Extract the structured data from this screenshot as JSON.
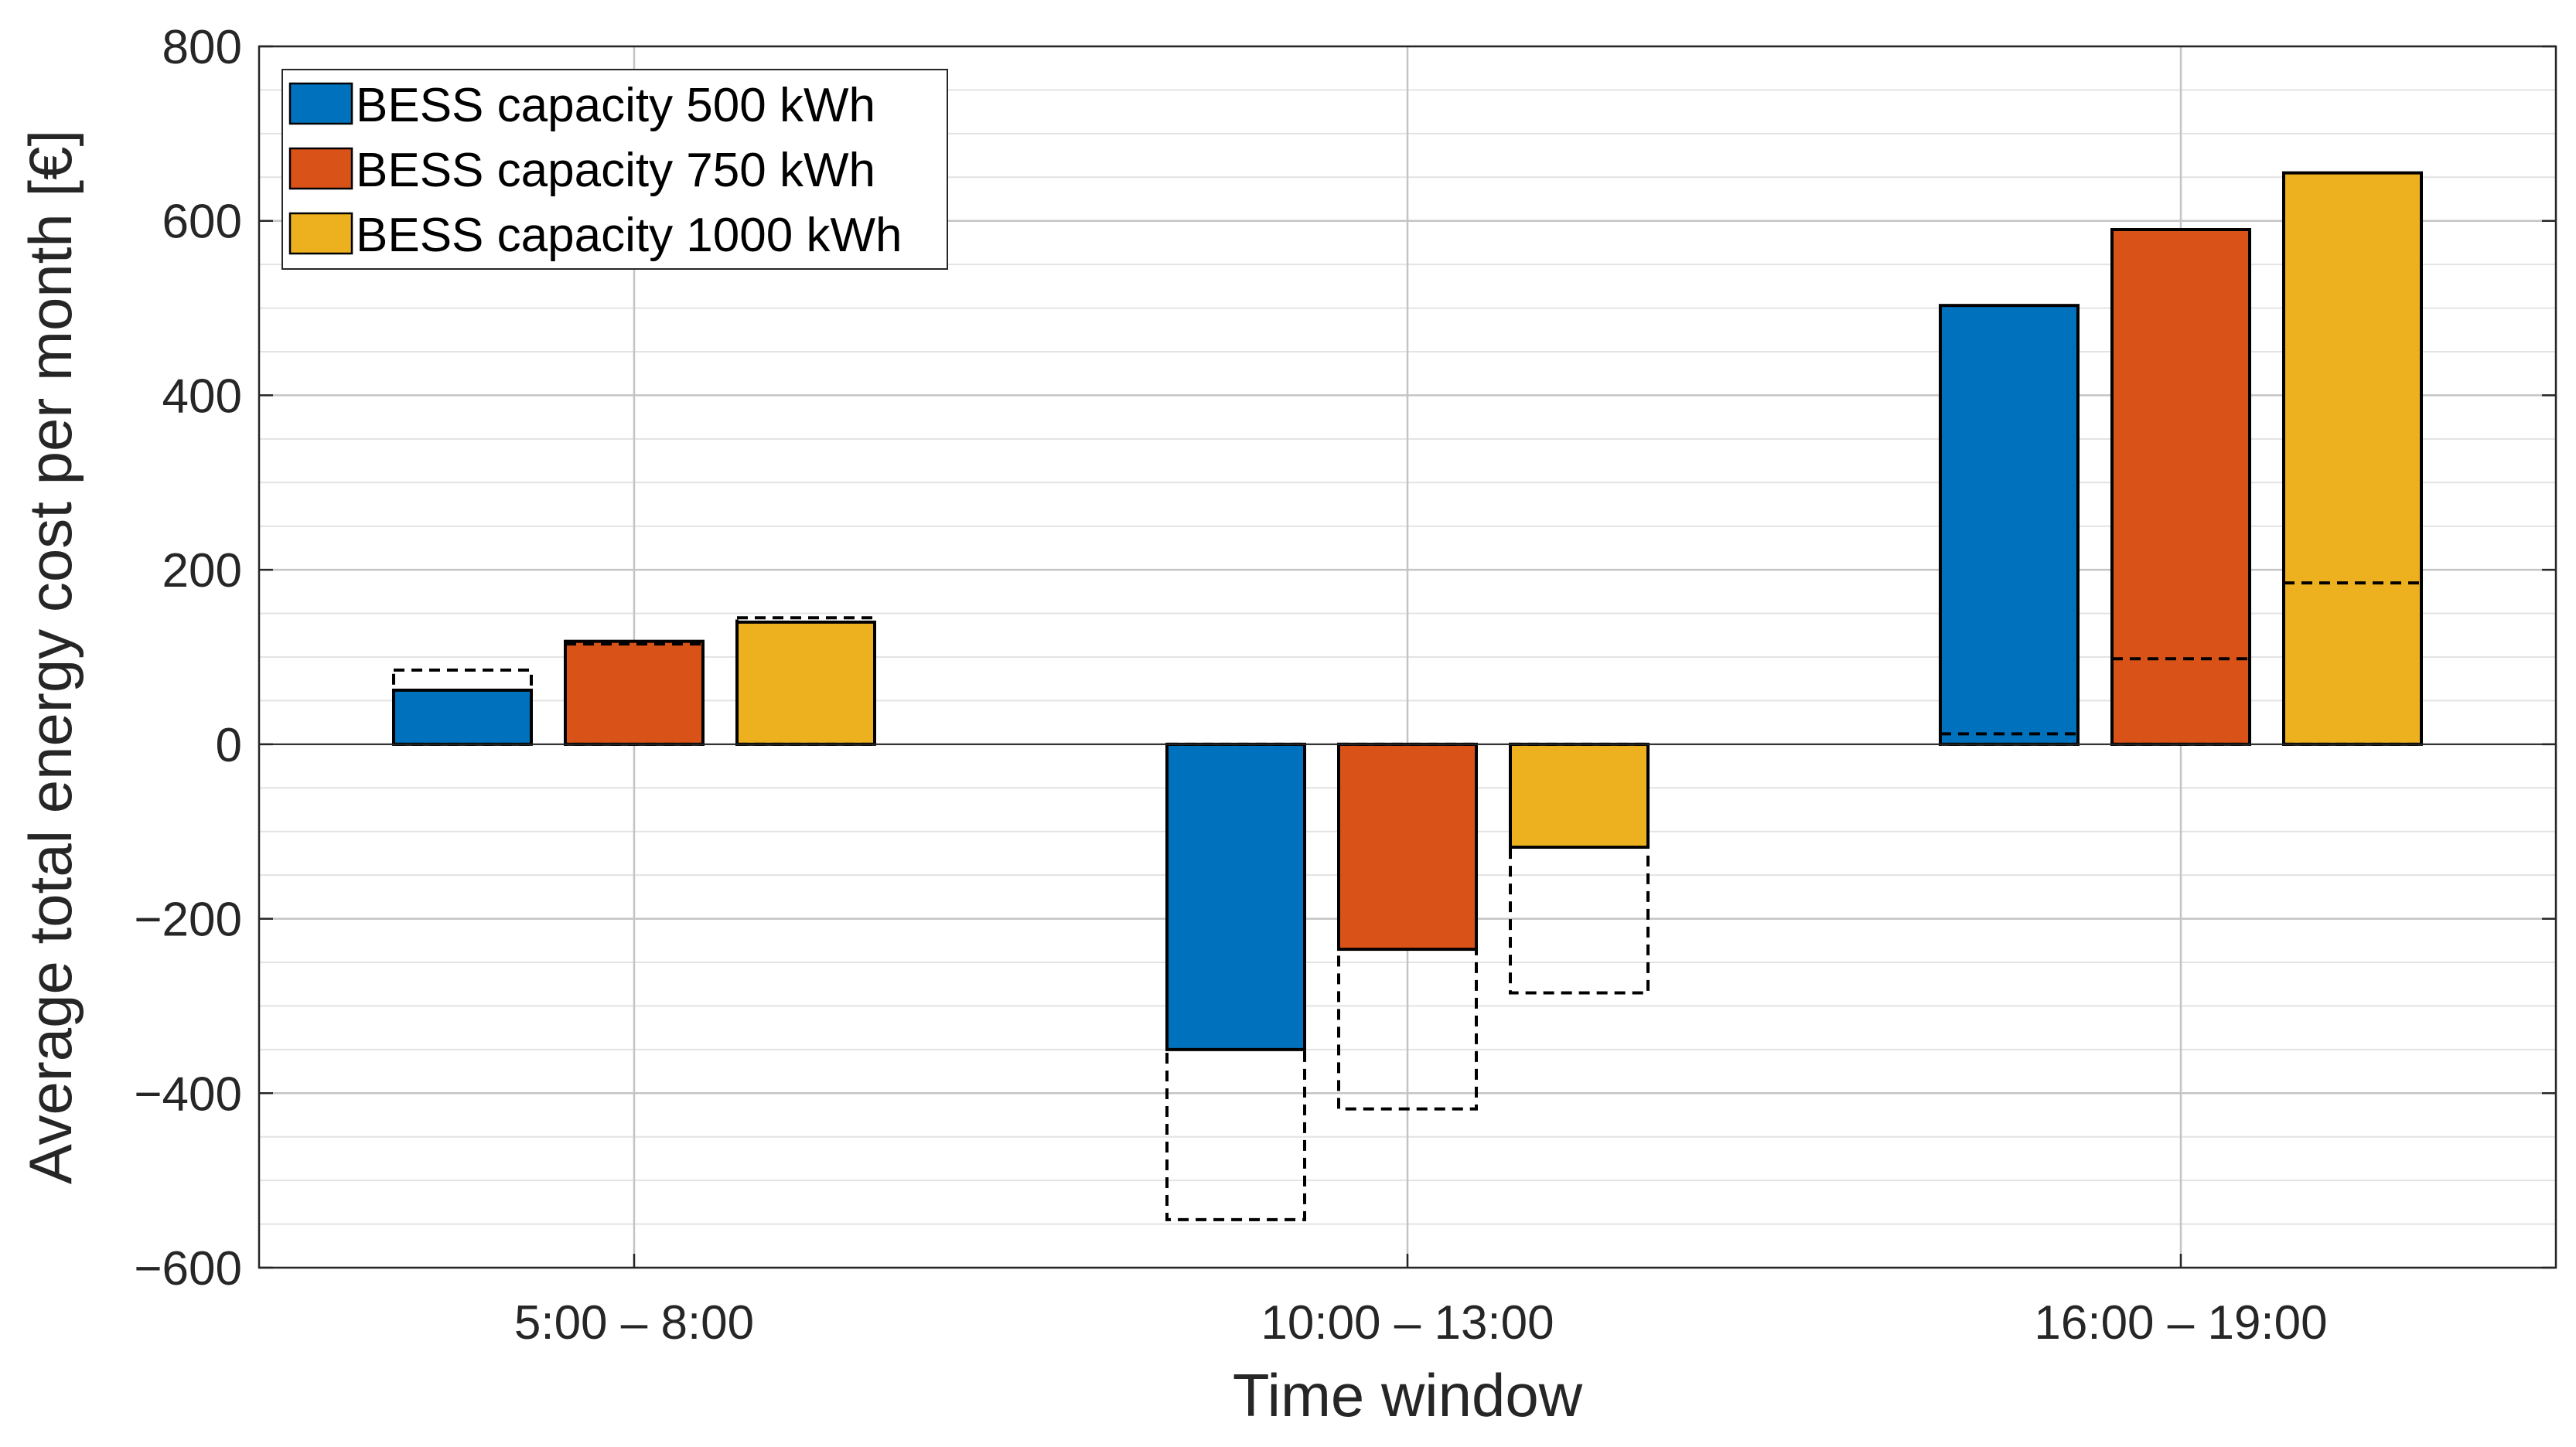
{
  "chart_data": {
    "type": "bar",
    "title": "",
    "xlabel": "Time window",
    "ylabel": "Average total energy cost per month [€]",
    "ylim": [
      -600,
      800
    ],
    "yticks": [
      -600,
      -400,
      -200,
      0,
      200,
      400,
      600,
      800
    ],
    "ytick_labels": [
      "−600",
      "−400",
      "−200",
      "0",
      "200",
      "400",
      "600",
      "800"
    ],
    "minor_grid_step": 50,
    "grid": true,
    "legend_position": "top-left",
    "categories": [
      "5:00 – 8:00",
      "10:00 – 13:00",
      "16:00 – 19:00"
    ],
    "series": [
      {
        "name": "BESS capacity 500 kWh",
        "color": "#0072bd",
        "values": [
          62,
          -350,
          503
        ],
        "reference_values": [
          85,
          -545,
          12
        ]
      },
      {
        "name": "BESS capacity 750 kWh",
        "color": "#d95319",
        "values": [
          118,
          -235,
          590
        ],
        "reference_values": [
          115,
          -418,
          98
        ]
      },
      {
        "name": "BESS capacity 1000 kWh",
        "color": "#edb120",
        "values": [
          140,
          -118,
          655
        ],
        "reference_values": [
          145,
          -285,
          185
        ]
      }
    ],
    "reference_style": "dashed outline"
  }
}
